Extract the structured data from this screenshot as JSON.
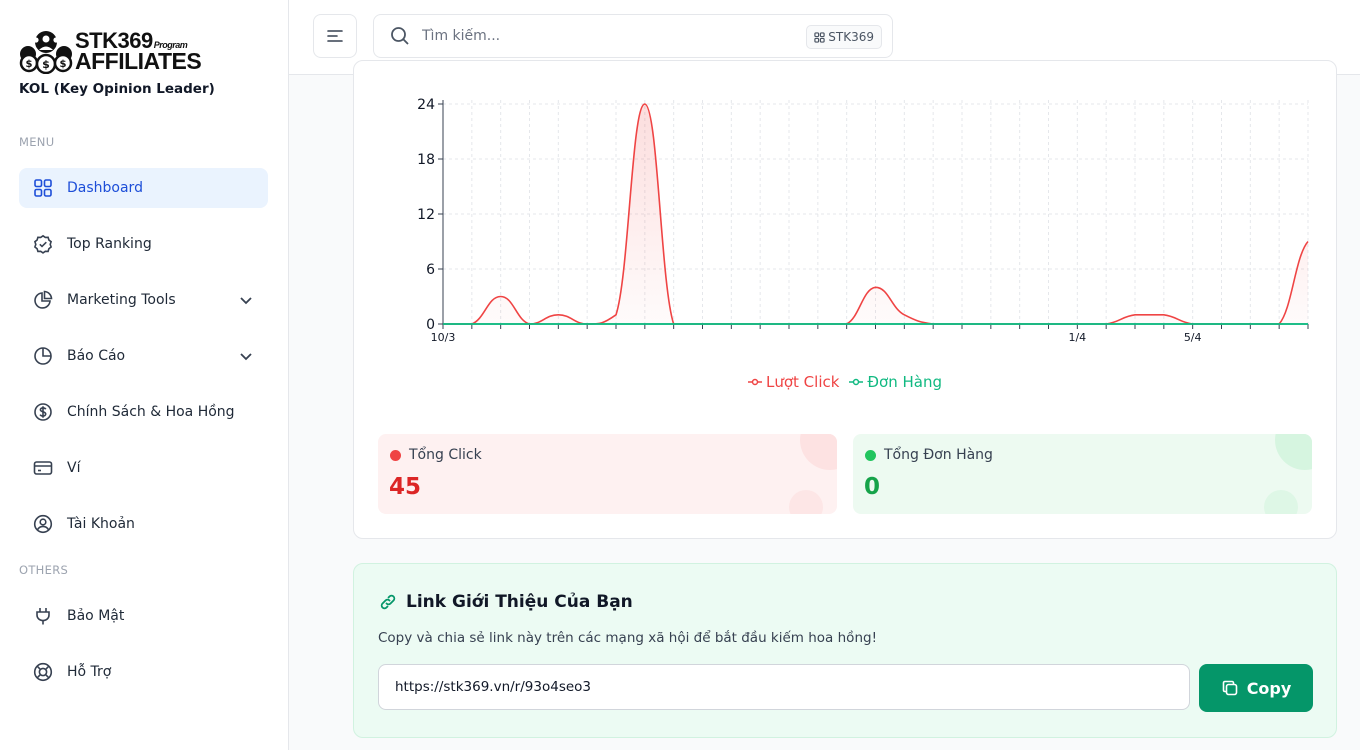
{
  "brand": {
    "logo_line1": "STK369",
    "logo_program": "Program",
    "logo_line2": "AFFILIATES",
    "role": "KOL (Key Opinion Leader)"
  },
  "sidebar": {
    "menu_label": "MENU",
    "others_label": "OTHERS",
    "items": [
      {
        "label": "Dashboard",
        "icon": "grid-icon",
        "active": true
      },
      {
        "label": "Top Ranking",
        "icon": "badge-check-icon"
      },
      {
        "label": "Marketing Tools",
        "icon": "pie-chart-icon",
        "expandable": true
      },
      {
        "label": "Báo Cáo",
        "icon": "pie-chart-icon",
        "expandable": true
      },
      {
        "label": "Chính Sách & Hoa Hồng",
        "icon": "dollar-circle-icon"
      },
      {
        "label": "Ví",
        "icon": "wallet-icon"
      },
      {
        "label": "Tài Khoản",
        "icon": "user-circle-icon"
      }
    ],
    "others": [
      {
        "label": "Bảo Mật",
        "icon": "plug-icon"
      },
      {
        "label": "Hỗ Trợ",
        "icon": "lifebuoy-icon"
      }
    ]
  },
  "topbar": {
    "search_placeholder": "Tìm kiếm...",
    "search_badge": "STK369"
  },
  "chart_data": {
    "type": "area",
    "x_tick_labels": [
      "10/3",
      "1/4",
      "5/4"
    ],
    "y_ticks": [
      0,
      6,
      12,
      18,
      24
    ],
    "ylim": [
      0,
      24
    ],
    "series": [
      {
        "name": "Lượt Click",
        "color": "#ef4444",
        "values": [
          0,
          0,
          3,
          0,
          1,
          0,
          1,
          24,
          0,
          0,
          0,
          0,
          0,
          0,
          0,
          4,
          1,
          0,
          0,
          0,
          0,
          0,
          0,
          0,
          1,
          1,
          0,
          0,
          0,
          0,
          9
        ]
      },
      {
        "name": "Đơn Hàng",
        "color": "#10b981",
        "values": [
          0,
          0,
          0,
          0,
          0,
          0,
          0,
          0,
          0,
          0,
          0,
          0,
          0,
          0,
          0,
          0,
          0,
          0,
          0,
          0,
          0,
          0,
          0,
          0,
          0,
          0,
          0,
          0,
          0,
          0,
          0
        ]
      }
    ],
    "grid": true,
    "legend_position": "bottom-center"
  },
  "stats": {
    "clicks_label": "Tổng Click",
    "clicks_value": "45",
    "orders_label": "Tổng Đơn Hàng",
    "orders_value": "0"
  },
  "referral": {
    "title": "Link Giới Thiệu Của Bạn",
    "description": "Copy và chia sẻ link này trên các mạng xã hội để bắt đầu kiếm hoa hồng!",
    "link": "https://stk369.vn/r/93o4seo3",
    "copy_label": "Copy"
  },
  "colors": {
    "accent_blue": "#1d4ed8",
    "active_bg": "#eaf3fe",
    "click_red": "#ef4444",
    "order_green": "#10b981",
    "copy_button": "#059669"
  }
}
